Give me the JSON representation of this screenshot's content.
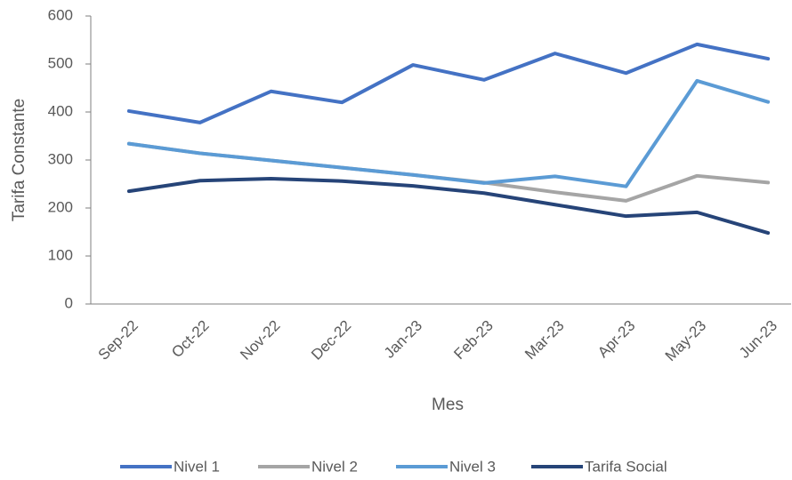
{
  "chart_data": {
    "type": "line",
    "x_label": "Mes",
    "y_label": "Tarifa Constante",
    "categories": [
      "Sep-22",
      "Oct-22",
      "Nov-22",
      "Dec-22",
      "Jan-23",
      "Feb-23",
      "Mar-23",
      "Apr-23",
      "May-23",
      "Jun-23"
    ],
    "series": [
      {
        "name": "Nivel 1",
        "color": "#4472c4",
        "values": [
          402,
          378,
          443,
          420,
          498,
          467,
          522,
          481,
          541,
          511
        ]
      },
      {
        "name": "Nivel 2",
        "color": "#a5a5a5",
        "values": [
          334,
          314,
          299,
          284,
          269,
          253,
          233,
          215,
          267,
          253
        ]
      },
      {
        "name": "Nivel 3",
        "color": "#5b9bd5",
        "values": [
          334,
          314,
          299,
          284,
          269,
          252,
          266,
          245,
          465,
          421
        ]
      },
      {
        "name": "Tarifa Social",
        "color": "#264478",
        "values": [
          235,
          257,
          261,
          256,
          246,
          231,
          207,
          183,
          191,
          148
        ]
      }
    ],
    "ylim": [
      0,
      600
    ],
    "yticks": [
      0,
      100,
      200,
      300,
      400,
      500,
      600
    ],
    "legend": "bottom"
  }
}
